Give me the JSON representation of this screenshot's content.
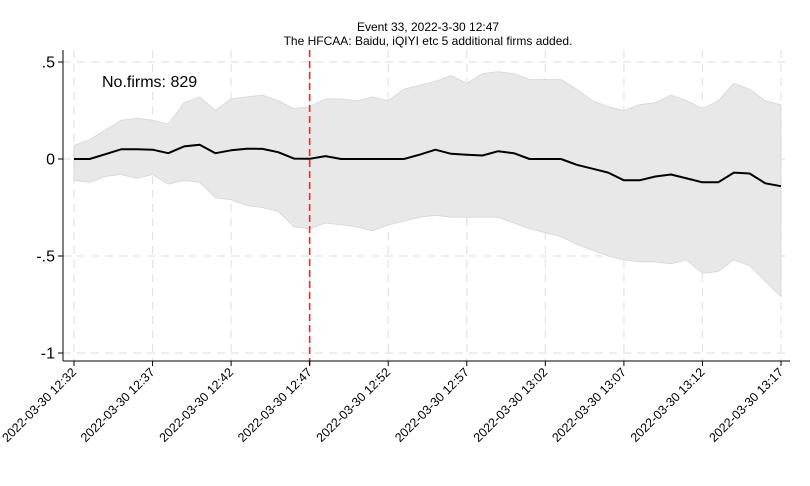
{
  "chart_data": {
    "type": "line",
    "title_lines": [
      "Event 33, 2022-3-30 12:47",
      "The HFCAA: Baidu, iQIYI etc 5 additional firms added."
    ],
    "xlabel": "",
    "ylabel": "",
    "ylim": [
      -1,
      0.5
    ],
    "yticks": [
      0.5,
      0,
      -0.5,
      -1
    ],
    "ytick_labels": [
      ".5",
      "0",
      "-.5",
      "-1"
    ],
    "x_ticks": [
      "2022-03-30 12:32",
      "2022-03-30 12:37",
      "2022-03-30 12:42",
      "2022-03-30 12:47",
      "2022-03-30 12:52",
      "2022-03-30 12:57",
      "2022-03-30 13:02",
      "2022-03-30 13:07",
      "2022-03-30 13:12",
      "2022-03-30 13:17"
    ],
    "x": [
      "12:32",
      "12:33",
      "12:34",
      "12:35",
      "12:36",
      "12:37",
      "12:38",
      "12:39",
      "12:40",
      "12:41",
      "12:42",
      "12:43",
      "12:44",
      "12:45",
      "12:46",
      "12:47",
      "12:48",
      "12:49",
      "12:50",
      "12:51",
      "12:52",
      "12:53",
      "12:54",
      "12:55",
      "12:56",
      "12:57",
      "12:58",
      "12:59",
      "13:00",
      "13:01",
      "13:02",
      "13:03",
      "13:04",
      "13:05",
      "13:06",
      "13:07",
      "13:08",
      "13:09",
      "13:10",
      "13:11",
      "13:12",
      "13:13",
      "13:14",
      "13:15",
      "13:16",
      "13:17"
    ],
    "mean": [
      0,
      0,
      0.025,
      0.05,
      0.05,
      0.048,
      0.03,
      0.065,
      0.073,
      0.03,
      0.045,
      0.053,
      0.052,
      0.035,
      0.002,
      0.001,
      0.015,
      0,
      0,
      0,
      0,
      0,
      0.022,
      0.048,
      0.027,
      0.022,
      0.018,
      0.04,
      0.03,
      0,
      0,
      0,
      -0.03,
      -0.05,
      -0.07,
      -0.11,
      -0.11,
      -0.09,
      -0.08,
      -0.1,
      -0.12,
      -0.12,
      -0.07,
      -0.075,
      -0.125,
      -0.14
    ],
    "upper": [
      0.07,
      0.1,
      0.15,
      0.2,
      0.21,
      0.2,
      0.18,
      0.29,
      0.32,
      0.25,
      0.31,
      0.32,
      0.33,
      0.3,
      0.26,
      0.27,
      0.31,
      0.31,
      0.3,
      0.32,
      0.3,
      0.36,
      0.38,
      0.4,
      0.43,
      0.39,
      0.44,
      0.45,
      0.44,
      0.41,
      0.41,
      0.41,
      0.36,
      0.3,
      0.27,
      0.25,
      0.28,
      0.29,
      0.33,
      0.3,
      0.26,
      0.3,
      0.39,
      0.36,
      0.3,
      0.28
    ],
    "lower": [
      -0.11,
      -0.12,
      -0.09,
      -0.08,
      -0.1,
      -0.08,
      -0.13,
      -0.11,
      -0.12,
      -0.2,
      -0.21,
      -0.24,
      -0.25,
      -0.27,
      -0.35,
      -0.36,
      -0.33,
      -0.34,
      -0.35,
      -0.37,
      -0.34,
      -0.32,
      -0.3,
      -0.29,
      -0.3,
      -0.3,
      -0.3,
      -0.3,
      -0.33,
      -0.36,
      -0.38,
      -0.4,
      -0.44,
      -0.47,
      -0.5,
      -0.52,
      -0.53,
      -0.53,
      -0.54,
      -0.52,
      -0.59,
      -0.58,
      -0.52,
      -0.55,
      -0.63,
      -0.71
    ],
    "event_x": "12:47",
    "annotation": "No.firms: 829",
    "grid": true,
    "colors": {
      "line": "#000000",
      "band": "#e8e8e8",
      "event_line": "#e03030",
      "grid": "#e4e4e4"
    }
  }
}
